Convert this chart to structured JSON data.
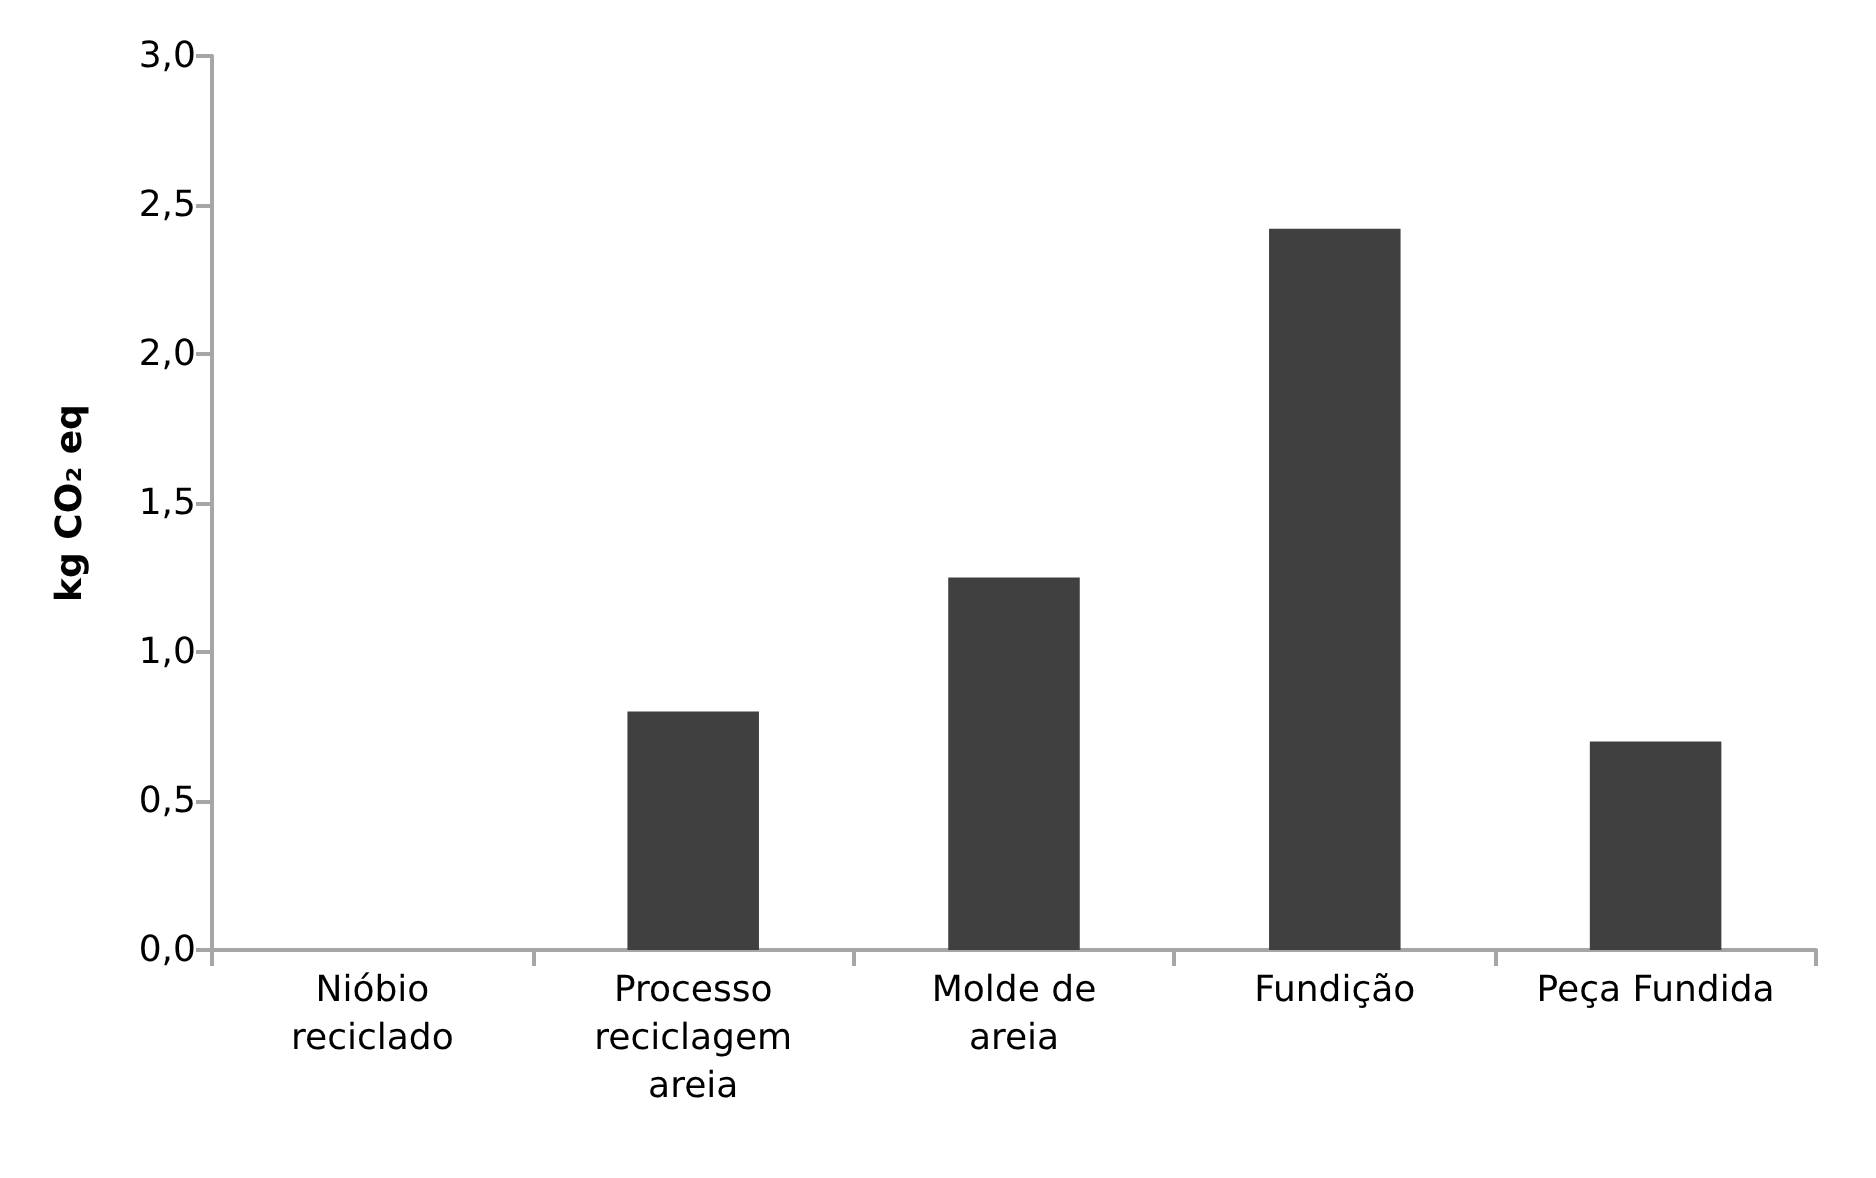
{
  "chart_data": {
    "type": "bar",
    "ylabel": "kg CO₂ eq",
    "categories": [
      "Nióbio reciclado",
      "Processo reciclagem areia",
      "Molde de areia",
      "Fundição",
      "Peça Fundida"
    ],
    "values": [
      0,
      0.8,
      1.25,
      2.42,
      0.7
    ],
    "color": "#404040",
    "ylim": [
      0,
      3
    ],
    "yticks": [
      {
        "value": 0,
        "label": "0,0"
      },
      {
        "value": 0.5,
        "label": "0,5"
      },
      {
        "value": 1,
        "label": "1,0"
      },
      {
        "value": 1.5,
        "label": "1,5"
      },
      {
        "value": 2,
        "label": "2,0"
      },
      {
        "value": 2.5,
        "label": "2,5"
      },
      {
        "value": 3,
        "label": "3,0"
      }
    ],
    "grid": false
  }
}
